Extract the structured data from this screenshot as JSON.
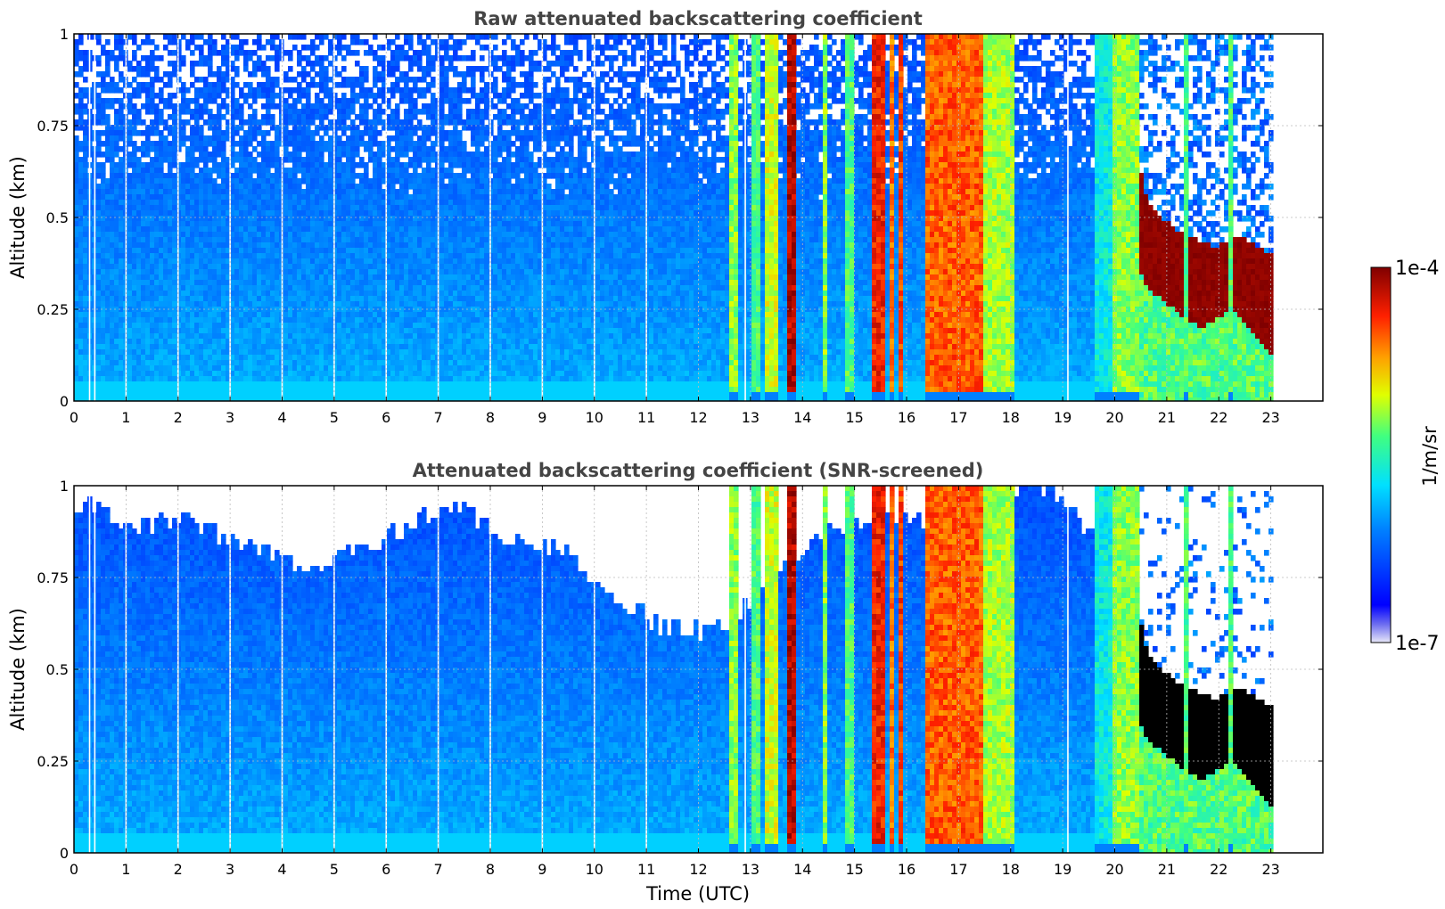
{
  "chart_data": [
    {
      "type": "heatmap",
      "title": "Raw attenuated backscattering coefficient",
      "ylabel": "Altitude (km)",
      "xlabel": "",
      "xlim": [
        0,
        24
      ],
      "ylim": [
        0,
        1
      ],
      "x_ticks": [
        "0",
        "1",
        "2",
        "3",
        "4",
        "5",
        "6",
        "7",
        "8",
        "9",
        "10",
        "11",
        "12",
        "13",
        "14",
        "15",
        "16",
        "17",
        "18",
        "19",
        "20",
        "21",
        "22",
        "23"
      ],
      "y_ticks": [
        "0",
        "0.25",
        "0.5",
        "0.75",
        "1"
      ],
      "grid": true,
      "screened": false,
      "data_end_time": 23.0,
      "gaps": [
        0.3,
        0.4,
        1.0,
        2.0,
        3.0,
        4.0,
        5.0,
        6.0,
        7.0,
        8.0,
        9.0,
        10.0,
        11.0,
        12.9,
        19.1
      ],
      "events": [
        {
          "start": 12.6,
          "end": 12.75,
          "level": 0.6
        },
        {
          "start": 13.0,
          "end": 13.15,
          "level": 0.55
        },
        {
          "start": 13.3,
          "end": 13.5,
          "level": 0.65
        },
        {
          "start": 13.7,
          "end": 13.85,
          "level": 0.95
        },
        {
          "start": 14.4,
          "end": 14.5,
          "level": 0.6
        },
        {
          "start": 14.8,
          "end": 14.95,
          "level": 0.55
        },
        {
          "start": 15.35,
          "end": 15.6,
          "level": 0.88
        },
        {
          "start": 15.7,
          "end": 15.8,
          "level": 0.8
        },
        {
          "start": 15.85,
          "end": 15.95,
          "level": 0.85
        },
        {
          "start": 16.35,
          "end": 17.5,
          "level": 0.82
        },
        {
          "start": 17.5,
          "end": 18.05,
          "level": 0.62
        },
        {
          "start": 19.6,
          "end": 20.0,
          "level": 0.45
        },
        {
          "start": 20.0,
          "end": 20.5,
          "level": 0.6
        },
        {
          "start": 21.3,
          "end": 21.45,
          "level": 0.55
        },
        {
          "start": 22.2,
          "end": 22.3,
          "level": 0.55
        }
      ],
      "cloud": {
        "start": 20.1,
        "end": 23.0,
        "top_km": [
          0.95,
          0.7,
          0.55,
          0.5,
          0.47,
          0.45,
          0.43,
          0.42,
          0.44,
          0.45,
          0.42,
          0.4
        ],
        "base_km": [
          0.6,
          0.4,
          0.3,
          0.28,
          0.25,
          0.22,
          0.2,
          0.22,
          0.25,
          0.22,
          0.17,
          0.12
        ],
        "level": 1.0
      }
    },
    {
      "type": "heatmap",
      "title": "Attenuated backscattering coefficient (SNR-screened)",
      "ylabel": "Altitude (km)",
      "xlabel": "Time (UTC)",
      "xlim": [
        0,
        24
      ],
      "ylim": [
        0,
        1
      ],
      "x_ticks": [
        "0",
        "1",
        "2",
        "3",
        "4",
        "5",
        "6",
        "7",
        "8",
        "9",
        "10",
        "11",
        "12",
        "13",
        "14",
        "15",
        "16",
        "17",
        "18",
        "19",
        "20",
        "21",
        "22",
        "23"
      ],
      "y_ticks": [
        "0",
        "0.25",
        "0.5",
        "0.75",
        "1"
      ],
      "grid": true,
      "screened": true,
      "data_end_time": 23.0,
      "gaps": [
        0.3,
        0.4,
        1.0,
        2.0,
        3.0,
        4.0,
        5.0,
        6.0,
        7.0,
        8.0,
        9.0,
        10.0,
        11.0,
        12.9,
        19.1
      ],
      "screen_top_km": [
        0.95,
        0.9,
        0.9,
        0.85,
        0.78,
        0.82,
        0.88,
        0.95,
        0.85,
        0.82,
        0.7,
        0.6,
        0.62,
        0.78,
        0.88,
        0.93,
        0.9,
        1.0,
        1.0,
        0.82,
        0.95,
        0.9,
        0.88,
        0.9
      ],
      "events": [
        {
          "start": 12.6,
          "end": 12.75,
          "level": 0.6
        },
        {
          "start": 13.0,
          "end": 13.15,
          "level": 0.55
        },
        {
          "start": 13.3,
          "end": 13.5,
          "level": 0.65
        },
        {
          "start": 13.7,
          "end": 13.85,
          "level": 0.95
        },
        {
          "start": 14.4,
          "end": 14.5,
          "level": 0.6
        },
        {
          "start": 14.8,
          "end": 14.95,
          "level": 0.55
        },
        {
          "start": 15.35,
          "end": 15.6,
          "level": 0.88
        },
        {
          "start": 15.7,
          "end": 15.8,
          "level": 0.8
        },
        {
          "start": 15.85,
          "end": 15.95,
          "level": 0.85
        },
        {
          "start": 16.35,
          "end": 17.5,
          "level": 0.82
        },
        {
          "start": 17.5,
          "end": 18.05,
          "level": 0.62
        },
        {
          "start": 19.6,
          "end": 20.0,
          "level": 0.45
        },
        {
          "start": 20.0,
          "end": 20.5,
          "level": 0.6
        },
        {
          "start": 21.3,
          "end": 21.45,
          "level": 0.55
        },
        {
          "start": 22.2,
          "end": 22.3,
          "level": 0.55
        }
      ],
      "cloud": {
        "start": 20.1,
        "end": 23.0,
        "top_km": [
          0.95,
          0.7,
          0.55,
          0.5,
          0.47,
          0.45,
          0.43,
          0.42,
          0.44,
          0.45,
          0.42,
          0.4
        ],
        "base_km": [
          0.6,
          0.4,
          0.3,
          0.28,
          0.25,
          0.22,
          0.2,
          0.22,
          0.25,
          0.22,
          0.17,
          0.12
        ],
        "level": 1.0,
        "saturated_color": "#000000"
      }
    }
  ],
  "colorbar": {
    "label": "1/m/sr",
    "max_label": "1e-4",
    "min_label": "1e-7",
    "colormap": "jet"
  },
  "colors": {
    "background": "#ffffff",
    "gridline": "#bbbbbb",
    "title": "#444444",
    "low_end": "#e8e8f8"
  }
}
